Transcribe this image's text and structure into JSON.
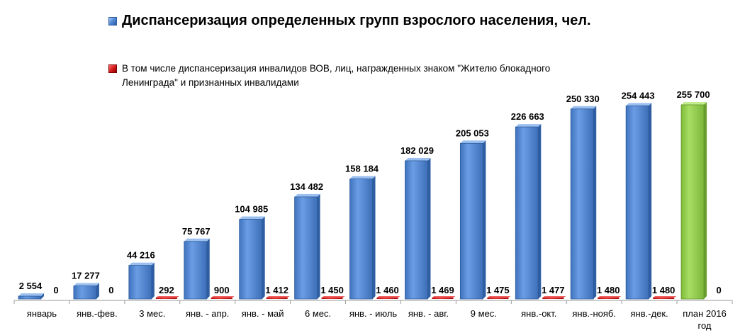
{
  "chart_data": {
    "type": "bar",
    "categories": [
      "январь",
      "янв.-фев.",
      "3 мес.",
      "янв. - апр.",
      "янв. - май",
      "6 мес.",
      "янв. - июль",
      "янв. - авг.",
      "9 мес.",
      "янв.-окт.",
      "янв.-нояб.",
      "янв.-дек.",
      "план 2016 год"
    ],
    "series": [
      {
        "name": "Диспансеризация определенных групп взрослого населения, чел.",
        "values": [
          2554,
          17277,
          44216,
          75767,
          104985,
          134482,
          158184,
          182029,
          205053,
          226663,
          250330,
          254443,
          255700
        ],
        "labels": [
          "2 554",
          "17 277",
          "44 216",
          "75 767",
          "104 985",
          "134 482",
          "158 184",
          "182 029",
          "205 053",
          "226 663",
          "250 330",
          "254 443",
          "255 700"
        ]
      },
      {
        "name": "В том числе диспансеризация инвалидов ВОВ, лиц, награжденных знаком \"Жителю блокадного Ленинграда\" и признанных инвалидами",
        "values": [
          0,
          0,
          292,
          900,
          1412,
          1450,
          1460,
          1469,
          1475,
          1477,
          1480,
          1480,
          0
        ],
        "labels": [
          "0",
          "0",
          "292",
          "900",
          "1 412",
          "1 450",
          "1 460",
          "1 469",
          "1 475",
          "1 477",
          "1 480",
          "1 480",
          "0"
        ]
      }
    ],
    "highlight_category": "план 2016 год",
    "colors": {
      "series1": "#4f86d3",
      "series2": "#d01818",
      "highlight": "#92d050"
    },
    "ylim": [
      0,
      255700
    ],
    "grid": false,
    "legend_position": "top-left"
  }
}
